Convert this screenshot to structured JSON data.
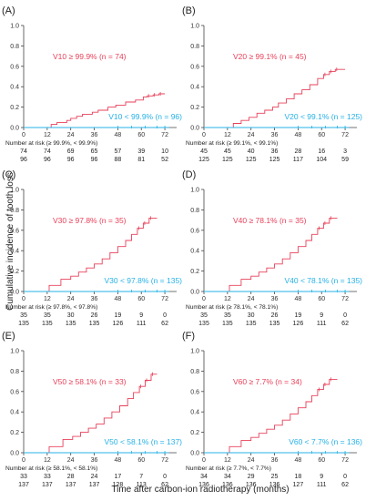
{
  "figure": {
    "y_axis_label": "Cumulative incidence of tooth loss",
    "x_axis_label": "Time after carbon-ion radiotherapy (months)",
    "colors": {
      "high_group": "#e8415a",
      "low_group": "#26b1e6",
      "axis": "#444444",
      "text": "#222222"
    }
  },
  "chart_data": [
    {
      "type": "line",
      "step": true,
      "panel": "(A)",
      "xlim": [
        0,
        78
      ],
      "ylim": [
        0,
        1.0
      ],
      "x_ticks": [
        0,
        12,
        24,
        36,
        48,
        60,
        72
      ],
      "y_ticks": [
        "0.0",
        "0.2",
        "0.4",
        "0.6",
        "0.8",
        "1.0"
      ],
      "series": [
        {
          "name": "V10 ≥ 99.9% (n = 74)",
          "group": "high",
          "x": [
            0,
            12,
            14,
            17,
            22,
            24,
            27,
            30,
            35,
            38,
            43,
            47,
            52,
            57,
            61,
            63,
            66,
            69,
            72
          ],
          "y": [
            0,
            0,
            0.03,
            0.05,
            0.07,
            0.09,
            0.11,
            0.13,
            0.15,
            0.17,
            0.2,
            0.22,
            0.25,
            0.27,
            0.3,
            0.31,
            0.32,
            0.33,
            0.33
          ]
        },
        {
          "name": "V10 < 99.9% (n = 96)",
          "group": "low",
          "x": [
            0,
            74
          ],
          "y": [
            0,
            0.003
          ]
        }
      ],
      "risk_table": {
        "header": "Number at risk (≥ 99.9%, < 99.9%)",
        "high": [
          "74",
          "74",
          "69",
          "65",
          "57",
          "39",
          "10"
        ],
        "low": [
          "96",
          "96",
          "96",
          "96",
          "88",
          "81",
          "52"
        ]
      }
    },
    {
      "type": "line",
      "step": true,
      "panel": "(B)",
      "xlim": [
        0,
        78
      ],
      "ylim": [
        0,
        1.0
      ],
      "x_ticks": [
        0,
        12,
        24,
        36,
        48,
        60,
        72
      ],
      "y_ticks": [
        "0.0",
        "0.2",
        "0.4",
        "0.6",
        "0.8",
        "1.0"
      ],
      "series": [
        {
          "name": "V20 ≥ 99.1% (n = 45)",
          "group": "high",
          "x": [
            0,
            12,
            15,
            19,
            23,
            27,
            31,
            35,
            38,
            42,
            46,
            50,
            54,
            58,
            61,
            64,
            67,
            72
          ],
          "y": [
            0,
            0,
            0.04,
            0.07,
            0.1,
            0.14,
            0.17,
            0.2,
            0.24,
            0.28,
            0.33,
            0.37,
            0.42,
            0.48,
            0.52,
            0.55,
            0.57,
            0.57
          ]
        },
        {
          "name": "V20 < 99.1% (n = 125)",
          "group": "low",
          "x": [
            0,
            74
          ],
          "y": [
            0,
            0.003
          ]
        }
      ],
      "risk_table": {
        "header": "Number at risk (≥ 99.1%, < 99.1%)",
        "high": [
          "45",
          "45",
          "40",
          "36",
          "28",
          "16",
          "3"
        ],
        "low": [
          "125",
          "125",
          "125",
          "125",
          "117",
          "104",
          "59"
        ]
      }
    },
    {
      "type": "line",
      "step": true,
      "panel": "(C)",
      "xlim": [
        0,
        78
      ],
      "ylim": [
        0,
        1.0
      ],
      "x_ticks": [
        0,
        12,
        24,
        36,
        48,
        60,
        72
      ],
      "y_ticks": [
        "0.0",
        "0.2",
        "0.4",
        "0.6",
        "0.8",
        "1.0"
      ],
      "series": [
        {
          "name": "V30 ≥ 97.8% (n = 35)",
          "group": "high",
          "x": [
            0,
            11,
            13,
            19,
            24,
            28,
            32,
            36,
            40,
            44,
            48,
            52,
            55,
            58,
            61,
            64,
            68
          ],
          "y": [
            0,
            0,
            0.06,
            0.12,
            0.15,
            0.19,
            0.23,
            0.27,
            0.32,
            0.38,
            0.44,
            0.5,
            0.56,
            0.62,
            0.67,
            0.72,
            0.72
          ]
        },
        {
          "name": "V30 < 97.8% (n = 135)",
          "group": "low",
          "x": [
            0,
            74
          ],
          "y": [
            0,
            0.003
          ]
        }
      ],
      "risk_table": {
        "header": "Number at risk (≥ 97.8%, < 97.8%)",
        "high": [
          "35",
          "35",
          "30",
          "26",
          "19",
          "9",
          "0"
        ],
        "low": [
          "135",
          "135",
          "135",
          "135",
          "126",
          "111",
          "62"
        ]
      }
    },
    {
      "type": "line",
      "step": true,
      "panel": "(D)",
      "xlim": [
        0,
        78
      ],
      "ylim": [
        0,
        1.0
      ],
      "x_ticks": [
        0,
        12,
        24,
        36,
        48,
        60,
        72
      ],
      "y_ticks": [
        "0.0",
        "0.2",
        "0.4",
        "0.6",
        "0.8",
        "1.0"
      ],
      "series": [
        {
          "name": "V40 ≥ 78.1% (n = 35)",
          "group": "high",
          "x": [
            0,
            11,
            13,
            19,
            24,
            28,
            32,
            36,
            40,
            44,
            48,
            52,
            55,
            58,
            61,
            64,
            68
          ],
          "y": [
            0,
            0,
            0.06,
            0.12,
            0.15,
            0.19,
            0.23,
            0.27,
            0.32,
            0.38,
            0.44,
            0.5,
            0.56,
            0.62,
            0.67,
            0.72,
            0.72
          ]
        },
        {
          "name": "V40 < 78.1% (n = 135)",
          "group": "low",
          "x": [
            0,
            74
          ],
          "y": [
            0,
            0.003
          ]
        }
      ],
      "risk_table": {
        "header": "Number at risk (≥ 78.1%, < 78.1%)",
        "high": [
          "35",
          "35",
          "30",
          "26",
          "19",
          "9",
          "0"
        ],
        "low": [
          "135",
          "135",
          "135",
          "135",
          "126",
          "111",
          "62"
        ]
      }
    },
    {
      "type": "line",
      "step": true,
      "panel": "(E)",
      "xlim": [
        0,
        78
      ],
      "ylim": [
        0,
        1.0
      ],
      "x_ticks": [
        0,
        12,
        24,
        36,
        48,
        60,
        72
      ],
      "y_ticks": [
        "0.0",
        "0.2",
        "0.4",
        "0.6",
        "0.8",
        "1.0"
      ],
      "series": [
        {
          "name": "V50 ≥ 58.1% (n = 33)",
          "group": "high",
          "x": [
            0,
            11,
            13,
            20,
            25,
            29,
            33,
            37,
            41,
            45,
            49,
            53,
            56,
            59,
            62,
            65,
            68
          ],
          "y": [
            0,
            0,
            0.06,
            0.13,
            0.16,
            0.2,
            0.24,
            0.28,
            0.34,
            0.4,
            0.46,
            0.53,
            0.59,
            0.65,
            0.71,
            0.77,
            0.77
          ]
        },
        {
          "name": "V50 < 58.1% (n = 137)",
          "group": "low",
          "x": [
            0,
            74
          ],
          "y": [
            0,
            0.003
          ]
        }
      ],
      "risk_table": {
        "header": "Number at risk (≥ 58.1%, < 58.1%)",
        "high": [
          "33",
          "33",
          "28",
          "24",
          "17",
          "7",
          "0"
        ],
        "low": [
          "137",
          "137",
          "137",
          "137",
          "128",
          "113",
          "62"
        ]
      }
    },
    {
      "type": "line",
      "step": true,
      "panel": "(F)",
      "xlim": [
        0,
        78
      ],
      "ylim": [
        0,
        1.0
      ],
      "x_ticks": [
        0,
        12,
        24,
        36,
        48,
        60,
        72
      ],
      "y_ticks": [
        "0.0",
        "0.2",
        "0.4",
        "0.6",
        "0.8",
        "1.0"
      ],
      "series": [
        {
          "name": "V60 ≥ 7.7% (n = 34)",
          "group": "high",
          "x": [
            0,
            11,
            13,
            19,
            24,
            28,
            32,
            36,
            40,
            44,
            48,
            52,
            55,
            58,
            61,
            64,
            68
          ],
          "y": [
            0,
            0,
            0.06,
            0.12,
            0.15,
            0.19,
            0.23,
            0.27,
            0.32,
            0.38,
            0.44,
            0.5,
            0.56,
            0.62,
            0.67,
            0.72,
            0.72
          ]
        },
        {
          "name": "V60 < 7.7% (n = 136)",
          "group": "low",
          "x": [
            0,
            74
          ],
          "y": [
            0,
            0.003
          ]
        }
      ],
      "risk_table": {
        "header": "Number at risk (≥ 7.7%, < 7.7%)",
        "high": [
          "34",
          "34",
          "29",
          "25",
          "18",
          "9",
          "0"
        ],
        "low": [
          "136",
          "136",
          "136",
          "136",
          "127",
          "111",
          "62"
        ]
      }
    }
  ]
}
